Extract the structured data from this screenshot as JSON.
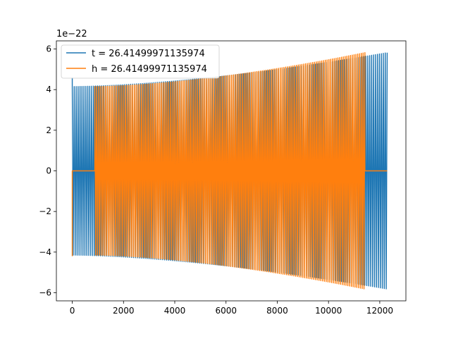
{
  "chart_data": {
    "type": "line",
    "title": "",
    "xlabel": "",
    "ylabel": "",
    "y_offset_label": "1e−22",
    "xlim": [
      -620,
      13020
    ],
    "ylim": [
      -6.4,
      6.4
    ],
    "x_ticks": [
      0,
      2000,
      4000,
      6000,
      8000,
      10000,
      12000
    ],
    "x_tick_labels": [
      "0",
      "2000",
      "4000",
      "6000",
      "8000",
      "10000",
      "12000"
    ],
    "y_ticks": [
      -6,
      -4,
      -2,
      0,
      2,
      4,
      6
    ],
    "y_tick_labels": [
      "−6",
      "−4",
      "−2",
      "0",
      "2",
      "4",
      "6"
    ],
    "grid": false,
    "legend_position": "upper-left",
    "series": [
      {
        "name": "t = 26.41499971135974",
        "color": "#1f77b4",
        "start": 0,
        "end": 12290,
        "flat_start": null,
        "flat_end": null,
        "cycles": 162,
        "amp_start": 4.15,
        "amp_end": 5.82,
        "initial_spike": 4.6
      },
      {
        "name": "h = 26.41499971135974",
        "color": "#ff7f0e",
        "start": 0,
        "end": 11420,
        "flat_start": [
          0,
          880
        ],
        "flat_end": [
          11420,
          12290
        ],
        "cycles": 150,
        "amp_start": 4.15,
        "amp_end": 5.82,
        "initial_spike": -4.2
      }
    ]
  }
}
